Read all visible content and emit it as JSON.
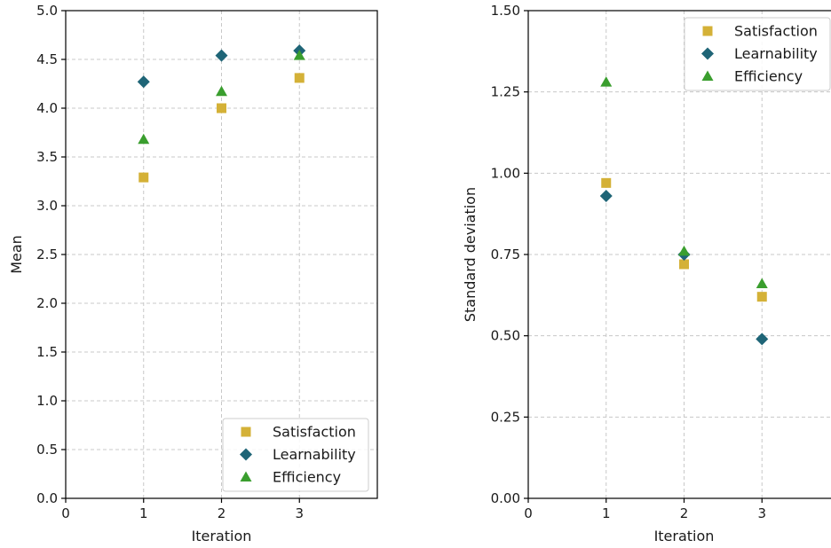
{
  "chart_data": [
    {
      "type": "scatter",
      "xlabel": "Iteration",
      "ylabel": "Mean",
      "xlim": [
        0,
        4
      ],
      "ylim": [
        0,
        5
      ],
      "xticks": [
        0,
        1,
        2,
        3
      ],
      "yticks": [
        0,
        0.5,
        1,
        1.5,
        2,
        2.5,
        3,
        3.5,
        4,
        4.5,
        5
      ],
      "tick_decimals": 1,
      "grid": true,
      "legend": "lower-right",
      "series": [
        {
          "name": "Satisfaction",
          "marker": "square",
          "color": "#d4b137",
          "x": [
            1,
            2,
            3
          ],
          "y": [
            3.29,
            4.0,
            4.31
          ]
        },
        {
          "name": "Learnability",
          "marker": "diamond",
          "color": "#1f6577",
          "x": [
            1,
            2,
            3
          ],
          "y": [
            4.27,
            4.54,
            4.59
          ]
        },
        {
          "name": "Efficiency",
          "marker": "triangle",
          "color": "#3a9e2e",
          "x": [
            1,
            2,
            3
          ],
          "y": [
            3.68,
            4.17,
            4.54
          ]
        }
      ]
    },
    {
      "type": "scatter",
      "xlabel": "Iteration",
      "ylabel": "Standard deviation",
      "xlim": [
        0,
        4
      ],
      "ylim": [
        0,
        1.5
      ],
      "xticks": [
        0,
        1,
        2,
        3
      ],
      "yticks": [
        0,
        0.25,
        0.5,
        0.75,
        1,
        1.25,
        1.5
      ],
      "tick_decimals": 2,
      "grid": true,
      "legend": "upper-right",
      "series": [
        {
          "name": "Satisfaction",
          "marker": "square",
          "color": "#d4b137",
          "x": [
            1,
            2,
            3
          ],
          "y": [
            0.97,
            0.72,
            0.62
          ]
        },
        {
          "name": "Learnability",
          "marker": "diamond",
          "color": "#1f6577",
          "x": [
            1,
            2,
            3
          ],
          "y": [
            0.93,
            0.75,
            0.49
          ]
        },
        {
          "name": "Efficiency",
          "marker": "triangle",
          "color": "#3a9e2e",
          "x": [
            1,
            2,
            3
          ],
          "y": [
            1.28,
            0.76,
            0.66
          ]
        }
      ]
    }
  ]
}
